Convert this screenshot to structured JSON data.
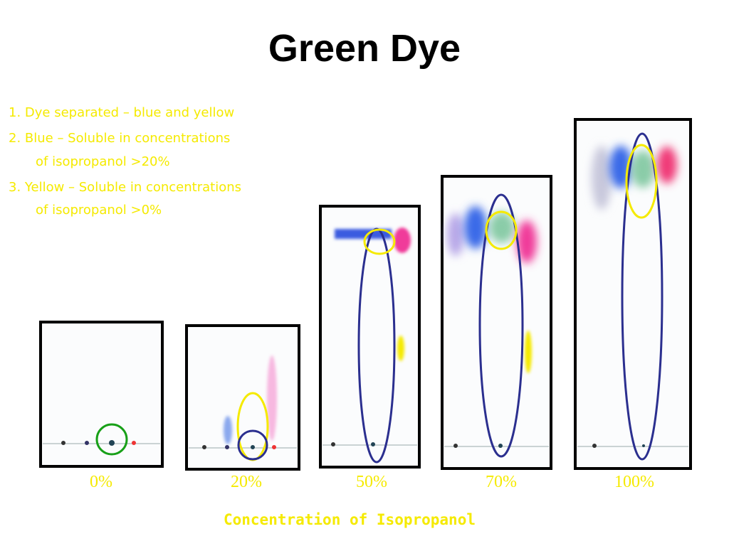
{
  "title": "Green Dye",
  "notes": [
    {
      "lines": [
        "1. Dye separated – blue and yellow"
      ]
    },
    {
      "lines": [
        "2. Blue – Soluble in concentrations",
        "of isopropanol >20%"
      ]
    },
    {
      "lines": [
        "3. Yellow – Soluble in concentrations",
        "of isopropanol >0%"
      ]
    }
  ],
  "panels": [
    {
      "label": "0%"
    },
    {
      "label": "20%"
    },
    {
      "label": "50%"
    },
    {
      "label": "70%"
    },
    {
      "label": "100%"
    }
  ],
  "x_axis_label": "Concentration of Isopropanol"
}
